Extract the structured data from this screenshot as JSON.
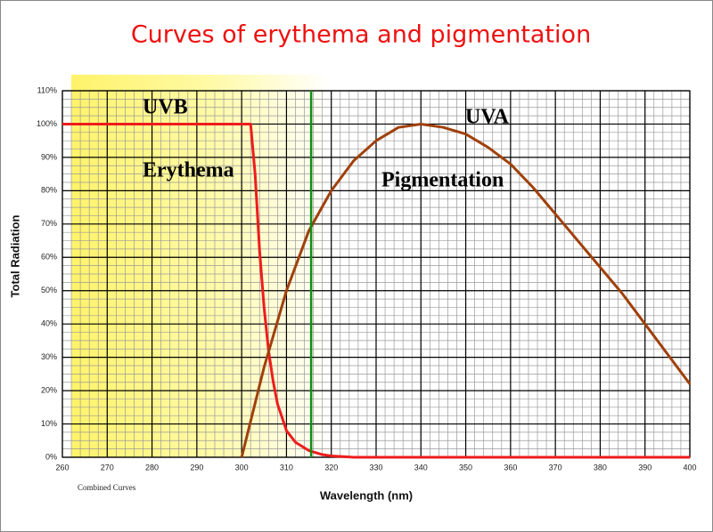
{
  "chart_data": {
    "type": "line",
    "title": "Curves of erythema and pigmentation",
    "xlabel": "Wavelength (nm)",
    "ylabel": "Total Radiation",
    "note": "Combined Curves",
    "annotations": [
      "UVB",
      "UVA"
    ],
    "xlim": [
      260,
      400
    ],
    "ylim": [
      0,
      110
    ],
    "xticks": [
      260,
      270,
      280,
      290,
      300,
      310,
      320,
      330,
      340,
      350,
      360,
      370,
      380,
      390,
      400
    ],
    "yticks": [
      {
        "value": 0,
        "label": "0%"
      },
      {
        "value": 10,
        "label": "10%"
      },
      {
        "value": 20,
        "label": "20%"
      },
      {
        "value": 30,
        "label": "30%"
      },
      {
        "value": 40,
        "label": "40%"
      },
      {
        "value": 50,
        "label": "50%"
      },
      {
        "value": 60,
        "label": "60%"
      },
      {
        "value": 70,
        "label": "70%"
      },
      {
        "value": 80,
        "label": "80%"
      },
      {
        "value": 90,
        "label": "90%"
      },
      {
        "value": 100,
        "label": "100%"
      },
      {
        "value": 110,
        "label": "110%"
      }
    ],
    "grid": true,
    "vline": {
      "x": 315.5,
      "color": "#109010"
    },
    "series": [
      {
        "name": "Erythema",
        "color": "#ee1c1c",
        "x": [
          260,
          302,
          303,
          304,
          305,
          306,
          307,
          308,
          310,
          312,
          315,
          318,
          320,
          325,
          400
        ],
        "values": [
          100,
          100,
          85,
          62,
          45,
          32,
          23,
          16,
          8,
          4.5,
          2,
          0.8,
          0.4,
          0,
          0
        ]
      },
      {
        "name": "Pigmentation",
        "color": "#a0400a",
        "x": [
          300,
          305,
          310,
          315,
          320,
          325,
          330,
          335,
          340,
          345,
          350,
          355,
          360,
          365,
          370,
          375,
          380,
          385,
          390,
          395,
          400
        ],
        "values": [
          0,
          27,
          50,
          68,
          80,
          89,
          95,
          99,
          100,
          99,
          97,
          93,
          88,
          81,
          73,
          65,
          57,
          49,
          40,
          31,
          22
        ]
      }
    ]
  }
}
